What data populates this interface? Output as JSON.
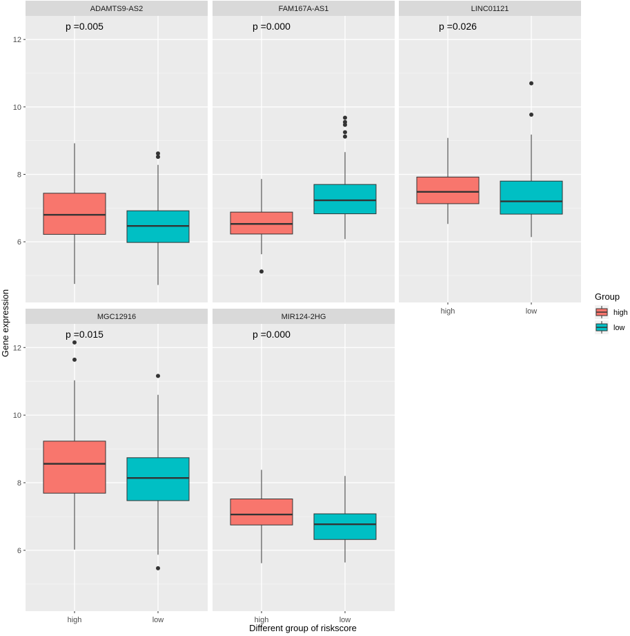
{
  "chart_data": {
    "type": "boxplot",
    "xlabel": "Different group of riskscore",
    "ylabel": "Gene expression",
    "categories": [
      "high",
      "low"
    ],
    "ylim": [
      4.2,
      12.7
    ],
    "yticks": [
      6,
      8,
      10,
      12
    ],
    "grid": true,
    "legend": {
      "title": "Group",
      "position": "right",
      "entries": [
        {
          "label": "high",
          "color": "#F8766D"
        },
        {
          "label": "low",
          "color": "#00BFC4"
        }
      ]
    },
    "panels": [
      {
        "title": "ADAMTS9-AS2",
        "annotation": "p =0.005",
        "boxes": [
          {
            "group": "high",
            "whisker_low": 4.75,
            "q1": 6.22,
            "median": 6.8,
            "q3": 7.44,
            "whisker_high": 8.92,
            "outliers": []
          },
          {
            "group": "low",
            "whisker_low": 4.72,
            "q1": 5.98,
            "median": 6.47,
            "q3": 6.92,
            "whisker_high": 8.28,
            "outliers": [
              8.52,
              8.62
            ]
          }
        ]
      },
      {
        "title": "FAM167A-AS1",
        "annotation": "p =0.000",
        "boxes": [
          {
            "group": "high",
            "whisker_low": 5.63,
            "q1": 6.23,
            "median": 6.53,
            "q3": 6.88,
            "whisker_high": 7.86,
            "outliers": [
              5.12
            ]
          },
          {
            "group": "low",
            "whisker_low": 6.08,
            "q1": 6.83,
            "median": 7.23,
            "q3": 7.7,
            "whisker_high": 8.66,
            "outliers": [
              9.12,
              9.25,
              9.47,
              9.55,
              9.68
            ]
          }
        ]
      },
      {
        "title": "LINC01121",
        "annotation": "p =0.026",
        "boxes": [
          {
            "group": "high",
            "whisker_low": 6.53,
            "q1": 7.13,
            "median": 7.48,
            "q3": 7.92,
            "whisker_high": 9.08,
            "outliers": []
          },
          {
            "group": "low",
            "whisker_low": 6.14,
            "q1": 6.82,
            "median": 7.2,
            "q3": 7.8,
            "whisker_high": 9.18,
            "outliers": [
              9.77,
              10.7
            ]
          }
        ]
      },
      {
        "title": "MGC12916",
        "annotation": "p =0.015",
        "boxes": [
          {
            "group": "high",
            "whisker_low": 6.02,
            "q1": 7.69,
            "median": 8.56,
            "q3": 9.23,
            "whisker_high": 11.03,
            "outliers": [
              11.64,
              12.15
            ]
          },
          {
            "group": "low",
            "whisker_low": 5.87,
            "q1": 7.47,
            "median": 8.14,
            "q3": 8.74,
            "whisker_high": 10.6,
            "outliers": [
              5.47,
              11.16
            ]
          }
        ]
      },
      {
        "title": "MIR124-2HG",
        "annotation": "p =0.000",
        "boxes": [
          {
            "group": "high",
            "whisker_low": 5.62,
            "q1": 6.75,
            "median": 7.06,
            "q3": 7.52,
            "whisker_high": 8.38,
            "outliers": []
          },
          {
            "group": "low",
            "whisker_low": 5.64,
            "q1": 6.32,
            "median": 6.77,
            "q3": 7.08,
            "whisker_high": 8.2,
            "outliers": []
          }
        ]
      }
    ]
  }
}
